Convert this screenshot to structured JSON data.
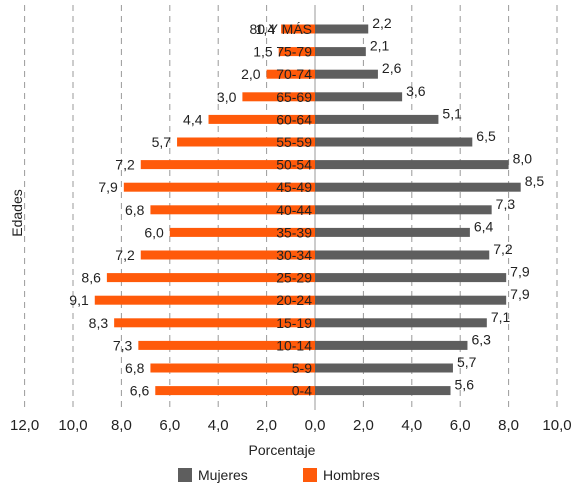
{
  "chart_data": {
    "type": "bar",
    "orientation": "horizontal-population-pyramid",
    "categories": [
      "80 Y MÁS",
      "75-79",
      "70-74",
      "65-69",
      "60-64",
      "55-59",
      "50-54",
      "45-49",
      "40-44",
      "35-39",
      "30-34",
      "25-29",
      "20-24",
      "15-19",
      "10-14",
      "5-9",
      "0-4"
    ],
    "series": [
      {
        "name": "Hombres",
        "color": "#ff5a0a",
        "side": "left",
        "values": [
          1.4,
          1.5,
          2.0,
          3.0,
          4.4,
          5.7,
          7.2,
          7.9,
          6.8,
          6.0,
          7.2,
          8.6,
          9.1,
          8.3,
          7.3,
          6.8,
          6.6
        ],
        "labels": [
          "1,4",
          "1,5",
          "2,0",
          "3,0",
          "4,4",
          "5,7",
          "7,2",
          "7,9",
          "6,8",
          "6,0",
          "7,2",
          "8,6",
          "9,1",
          "8,3",
          "7,3",
          "6,8",
          "6,6"
        ]
      },
      {
        "name": "Mujeres",
        "color": "#5e5e5e",
        "side": "right",
        "values": [
          2.2,
          2.1,
          2.6,
          3.6,
          5.1,
          6.5,
          8.0,
          8.5,
          7.3,
          6.4,
          7.2,
          7.9,
          7.9,
          7.1,
          6.3,
          5.7,
          5.6
        ],
        "labels": [
          "2,2",
          "2,1",
          "2,6",
          "3,6",
          "5,1",
          "6,5",
          "8,0",
          "8,5",
          "7,3",
          "6,4",
          "7,2",
          "7,9",
          "7,9",
          "7,1",
          "6,3",
          "5,7",
          "5,6"
        ]
      }
    ],
    "xticks": [
      -12,
      -10,
      -8,
      -6,
      -4,
      -2,
      0,
      2,
      4,
      6,
      8,
      10
    ],
    "xtick_labels": [
      "12,0",
      "10,0",
      "8,0",
      "6,0",
      "4,0",
      "2,0",
      "0,0",
      "2,0",
      "4,0",
      "6,0",
      "8,0",
      "10,0"
    ],
    "xlim": [
      -12,
      10
    ],
    "xlabel": "Porcentaje",
    "ylabel": "Edades",
    "grid": "vertical-dashed",
    "legend_position": "bottom"
  },
  "legend": {
    "mujeres_label": "Mujeres",
    "hombres_label": "Hombres"
  }
}
